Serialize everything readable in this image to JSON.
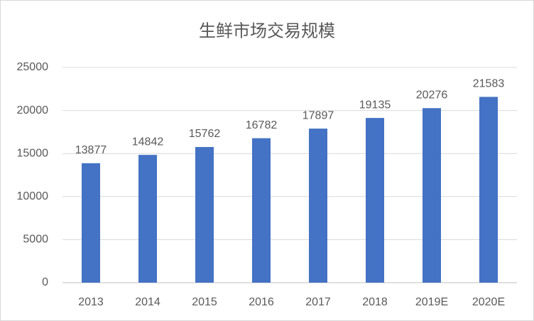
{
  "chart_data": {
    "type": "bar",
    "title": "生鲜市场交易规模",
    "categories": [
      "2013",
      "2014",
      "2015",
      "2016",
      "2017",
      "2018",
      "2019E",
      "2020E"
    ],
    "values": [
      13877,
      14842,
      15762,
      16782,
      17897,
      19135,
      20276,
      21583
    ],
    "color": "#4472c4",
    "ylim": [
      0,
      25000
    ],
    "yticks": [
      0,
      5000,
      10000,
      15000,
      20000,
      25000
    ],
    "grid": true
  }
}
